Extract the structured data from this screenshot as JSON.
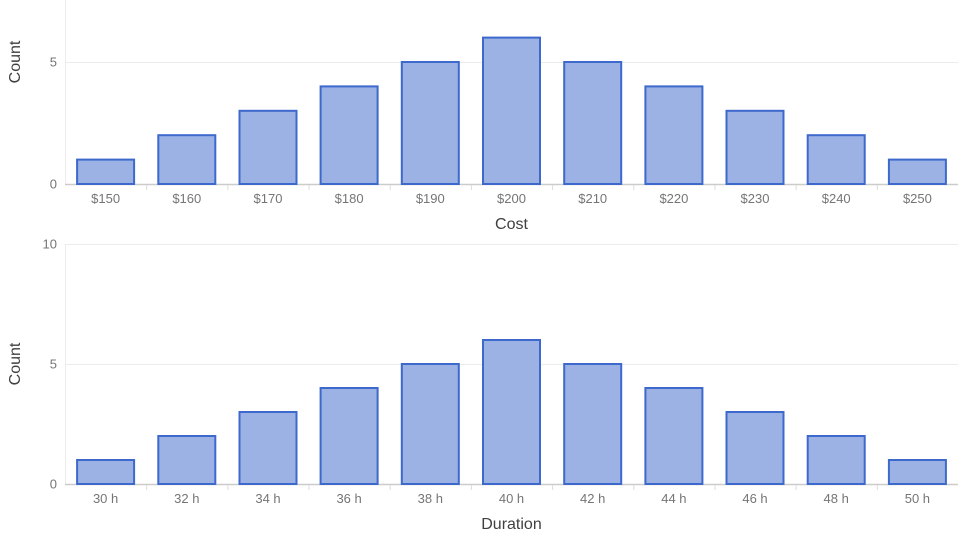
{
  "colors": {
    "background": "#ffffff",
    "bar_fill": "#9cb2e5",
    "bar_stroke": "#3d68cc",
    "gridline": "#ececec",
    "baseline": "#cccccc",
    "axis_tick": "#dcdcdc",
    "axis_edge": "#ededed",
    "tick_label": "#757575",
    "axis_title": "#404040"
  },
  "chart_data": [
    {
      "type": "bar",
      "title": "",
      "categories": [
        "$150",
        "$160",
        "$170",
        "$180",
        "$190",
        "$200",
        "$210",
        "$220",
        "$230",
        "$240",
        "$250"
      ],
      "values": [
        1,
        2,
        3,
        4,
        5,
        6,
        5,
        4,
        3,
        2,
        1
      ],
      "xlabel": "Cost",
      "ylabel": "Count",
      "ylim": [
        0,
        10
      ],
      "yticks": [
        0,
        5,
        10
      ],
      "yticks_visible": [
        0,
        5
      ],
      "grid": true,
      "legend": "none"
    },
    {
      "type": "bar",
      "title": "",
      "categories": [
        "30 h",
        "32 h",
        "34 h",
        "36 h",
        "38 h",
        "40 h",
        "42 h",
        "44 h",
        "46 h",
        "48 h",
        "50 h"
      ],
      "values": [
        1,
        2,
        3,
        4,
        5,
        6,
        5,
        4,
        3,
        2,
        1
      ],
      "xlabel": "Duration",
      "ylabel": "Count",
      "ylim": [
        0,
        10
      ],
      "yticks": [
        0,
        5,
        10
      ],
      "yticks_visible": [
        0,
        5,
        10
      ],
      "grid": true,
      "legend": "none"
    }
  ]
}
